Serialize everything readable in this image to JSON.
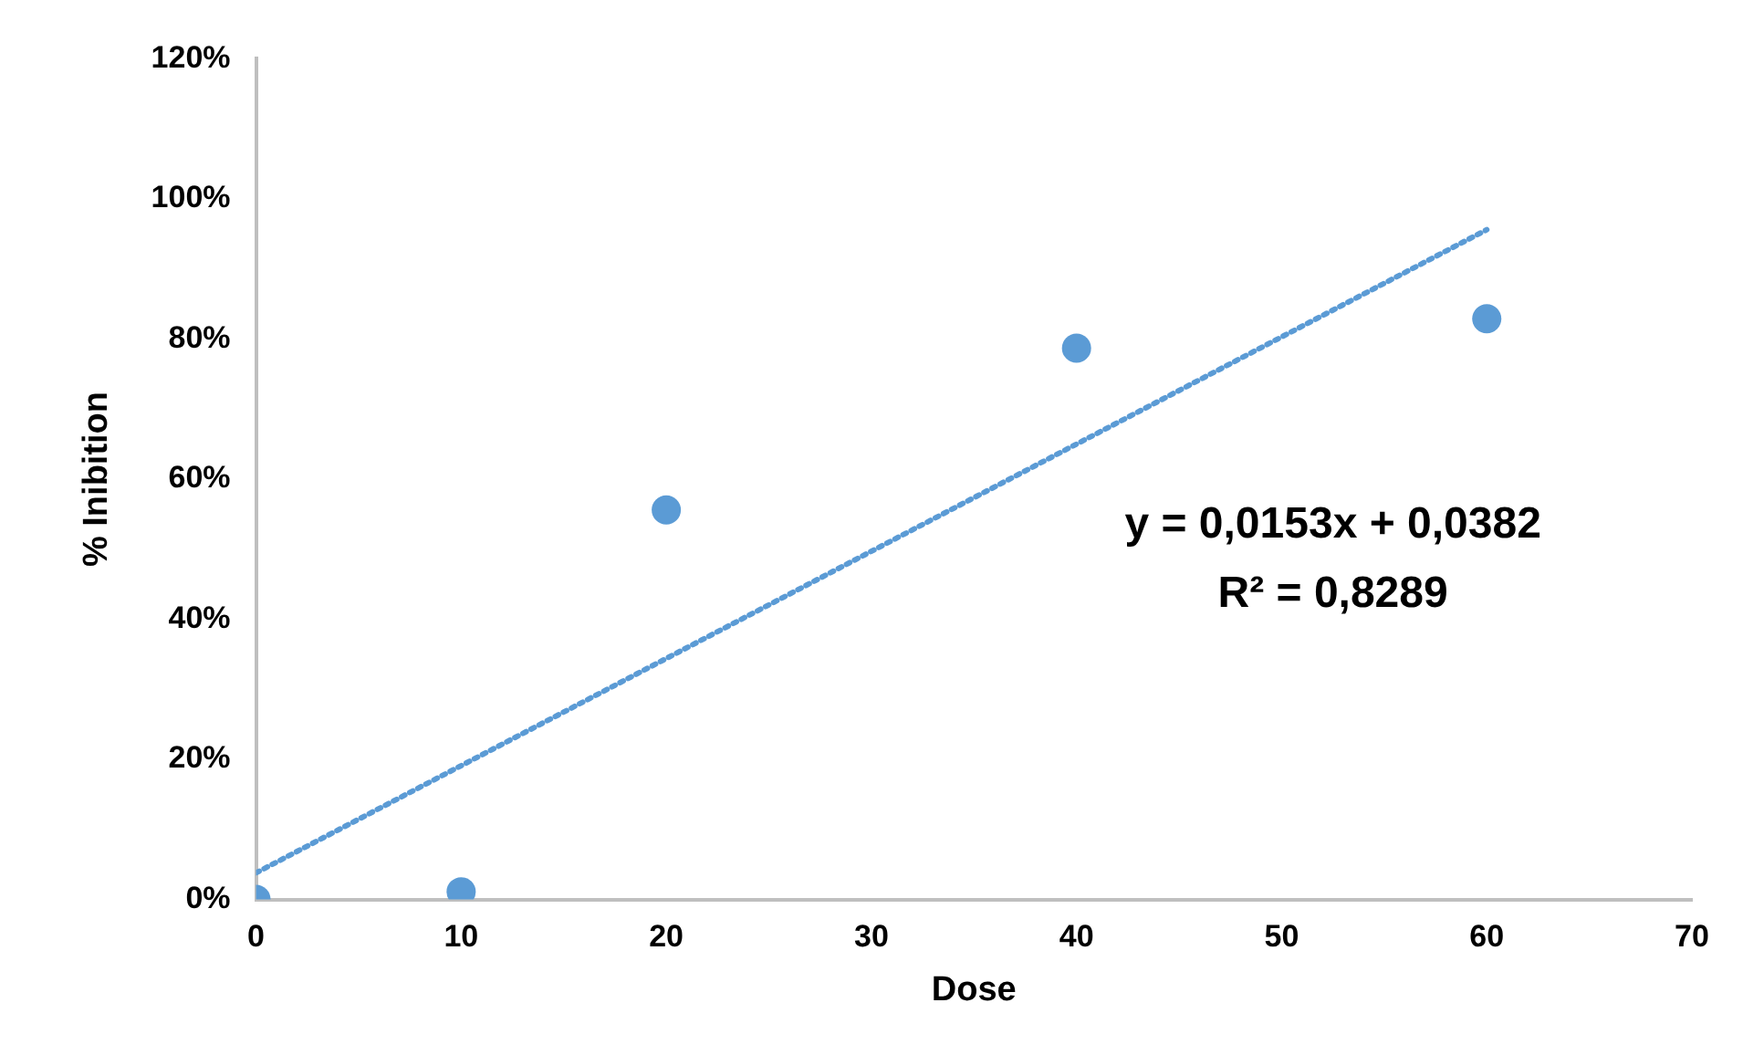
{
  "chart_data": {
    "type": "scatter",
    "xlabel": "Dose",
    "ylabel": "% Inibition",
    "xlim": [
      0,
      70
    ],
    "xticks": [
      0,
      10,
      20,
      30,
      40,
      50,
      60,
      70
    ],
    "ylim": [
      0,
      120
    ],
    "yticks": [
      {
        "value": 0,
        "label": "0%"
      },
      {
        "value": 20,
        "label": "20%"
      },
      {
        "value": 40,
        "label": "40%"
      },
      {
        "value": 60,
        "label": "60%"
      },
      {
        "value": 80,
        "label": "80%"
      },
      {
        "value": 100,
        "label": "100%"
      },
      {
        "value": 120,
        "label": "120%"
      }
    ],
    "series": [
      {
        "type": "scatter",
        "color": "#5b9bd5",
        "marker": "circle",
        "x": [
          0,
          10,
          20,
          40,
          60
        ],
        "values": [
          0,
          1.1,
          55.6,
          78.7,
          82.9
        ]
      },
      {
        "type": "line",
        "color": "#5b9bd5",
        "marker": "none",
        "line_style": "dotted",
        "x": [
          0,
          60
        ],
        "values": [
          3.8,
          95.6
        ]
      }
    ],
    "annotations": [
      "y = 0,0153x + 0,0382",
      "R² = 0,8289"
    ],
    "grid": false,
    "legend": false
  }
}
